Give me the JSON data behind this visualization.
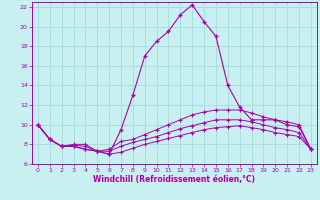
{
  "xlabel": "Windchill (Refroidissement éolien,°C)",
  "background_color": "#c8f0f0",
  "grid_color": "#aadddd",
  "line_color": "#aa00aa",
  "xlim": [
    -0.5,
    23.5
  ],
  "ylim": [
    6,
    22.5
  ],
  "xticks": [
    0,
    1,
    2,
    3,
    4,
    5,
    6,
    7,
    8,
    9,
    10,
    11,
    12,
    13,
    14,
    15,
    16,
    17,
    18,
    19,
    20,
    21,
    22,
    23
  ],
  "yticks": [
    6,
    8,
    10,
    12,
    14,
    16,
    18,
    20,
    22
  ],
  "series1_x": [
    0,
    1,
    2,
    3,
    4,
    5,
    6,
    7,
    8,
    9,
    10,
    11,
    12,
    13,
    14,
    15,
    16,
    17,
    18,
    19,
    20,
    21,
    22,
    23
  ],
  "series1_y": [
    10.0,
    8.5,
    7.8,
    7.8,
    7.5,
    7.3,
    7.0,
    9.5,
    13.0,
    17.0,
    18.5,
    19.5,
    21.2,
    22.2,
    20.5,
    19.0,
    14.0,
    11.8,
    10.5,
    10.5,
    10.5,
    10.0,
    9.8,
    7.5
  ],
  "series2_x": [
    0,
    1,
    2,
    3,
    4,
    5,
    6,
    7,
    8,
    9,
    10,
    11,
    12,
    13,
    14,
    15,
    16,
    17,
    18,
    19,
    20,
    21,
    22,
    23
  ],
  "series2_y": [
    10.0,
    8.5,
    7.8,
    8.0,
    8.0,
    7.3,
    7.5,
    8.3,
    8.5,
    9.0,
    9.5,
    10.0,
    10.5,
    11.0,
    11.3,
    11.5,
    11.5,
    11.5,
    11.2,
    10.8,
    10.5,
    10.3,
    10.0,
    7.5
  ],
  "series3_x": [
    0,
    1,
    2,
    3,
    4,
    5,
    6,
    7,
    8,
    9,
    10,
    11,
    12,
    13,
    14,
    15,
    16,
    17,
    18,
    19,
    20,
    21,
    22,
    23
  ],
  "series3_y": [
    10.0,
    8.5,
    7.8,
    7.9,
    7.8,
    7.3,
    7.3,
    7.8,
    8.2,
    8.5,
    8.8,
    9.2,
    9.6,
    9.9,
    10.2,
    10.5,
    10.5,
    10.5,
    10.3,
    10.0,
    9.7,
    9.5,
    9.2,
    7.5
  ],
  "series4_x": [
    0,
    1,
    2,
    3,
    4,
    5,
    6,
    7,
    8,
    9,
    10,
    11,
    12,
    13,
    14,
    15,
    16,
    17,
    18,
    19,
    20,
    21,
    22,
    23
  ],
  "series4_y": [
    10.0,
    8.5,
    7.8,
    7.8,
    7.5,
    7.3,
    7.0,
    7.2,
    7.6,
    8.0,
    8.3,
    8.6,
    8.9,
    9.2,
    9.5,
    9.7,
    9.8,
    9.9,
    9.7,
    9.5,
    9.2,
    9.0,
    8.8,
    7.5
  ]
}
